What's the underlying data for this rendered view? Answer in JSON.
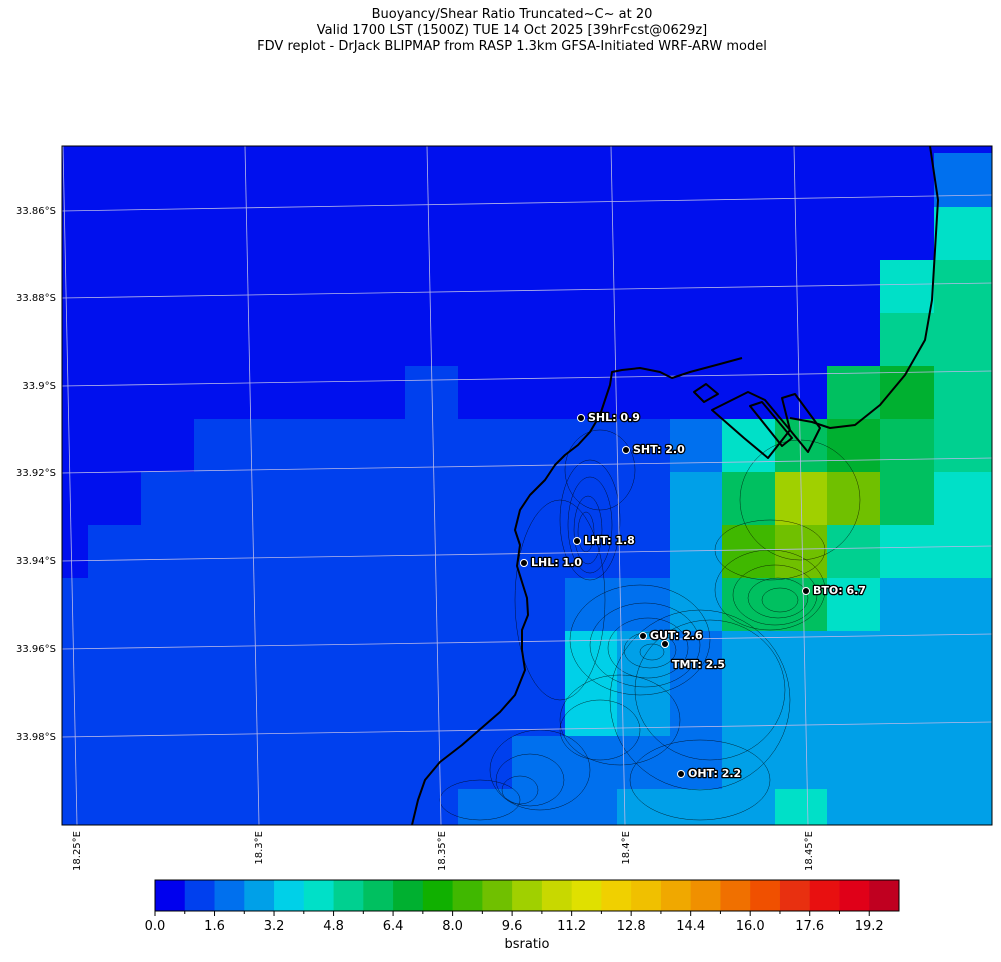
{
  "title": {
    "line1": "Buoyancy/Shear Ratio Truncated~C~    at 20",
    "line2": "Valid 1700 LST (1500Z) TUE 14 Oct 2025 [39hrFcst@0629z]",
    "line3": "FDV replot - DrJack BLIPMAP from RASP 1.3km GFSA-Initiated WRF-ARW model"
  },
  "map": {
    "lat_labels": [
      "33.86°S",
      "33.88°S",
      "33.9°S",
      "33.92°S",
      "33.94°S",
      "33.96°S",
      "33.98°S"
    ],
    "lon_labels": [
      "18.25°E",
      "18.3°E",
      "18.35°E",
      "18.4°E",
      "18.45°E"
    ],
    "colors": {
      "ocean_fill": "#0010ee",
      "grid_line": "#b8b8e8",
      "coastline": "#000000",
      "terrain_contour": "#000000",
      "frame": "#000000"
    },
    "stations": [
      {
        "id": "SHL",
        "label": "SHL: 0.9"
      },
      {
        "id": "SHT",
        "label": "SHT: 2.0"
      },
      {
        "id": "LHT",
        "label": "LHT: 1.8"
      },
      {
        "id": "LHL",
        "label": "LHL: 1.0"
      },
      {
        "id": "BTO",
        "label": "BTO: 6.7"
      },
      {
        "id": "GUT",
        "label": "GUT: 2.6"
      },
      {
        "id": "TMT",
        "label": "TMT: 2.5"
      },
      {
        "id": "OHT",
        "label": "OHT: 2.2"
      }
    ]
  },
  "colorbar": {
    "label": "bsratio",
    "tick_labels": [
      "0.0",
      "1.6",
      "3.2",
      "4.8",
      "6.4",
      "8.0",
      "9.6",
      "11.2",
      "12.8",
      "14.4",
      "16.0",
      "17.6",
      "19.2"
    ],
    "colors": [
      "#0000ee",
      "#0040ee",
      "#0070ee",
      "#00a0e8",
      "#00d0e8",
      "#00e0c8",
      "#00d090",
      "#00c060",
      "#00b030",
      "#10b000",
      "#40b800",
      "#70c000",
      "#a0d000",
      "#c8d800",
      "#e0e000",
      "#f0d000",
      "#f0c000",
      "#f0a800",
      "#f09000",
      "#f07000",
      "#f05000",
      "#e83010",
      "#e81010",
      "#e00018",
      "#c00020"
    ]
  }
}
